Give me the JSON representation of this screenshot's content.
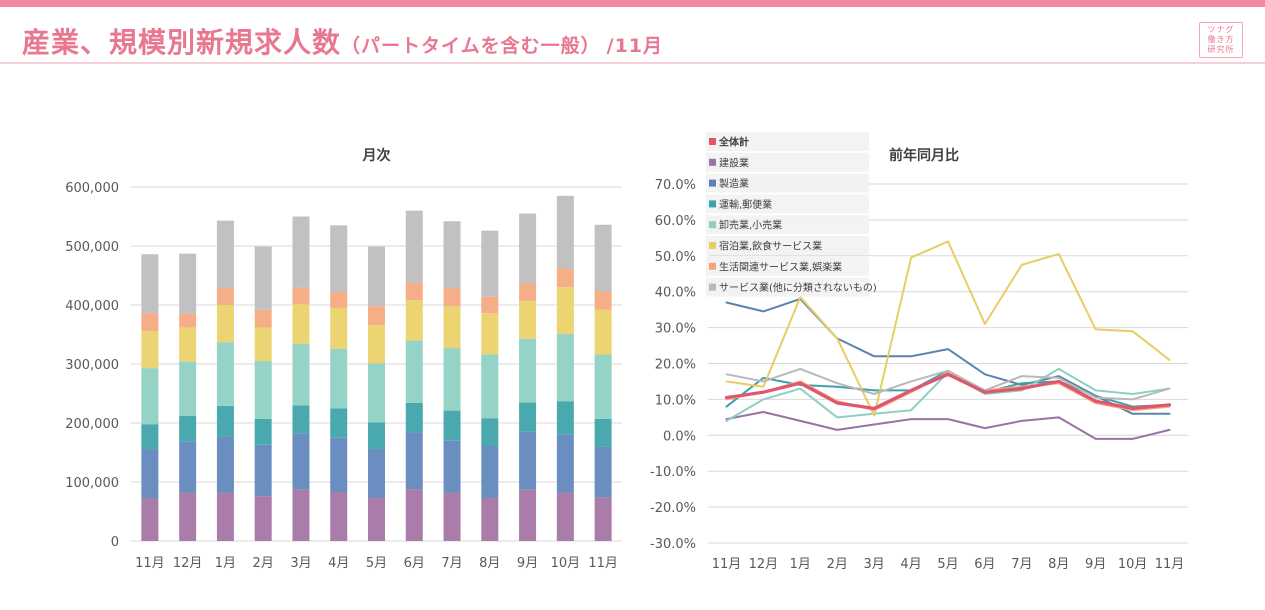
{
  "header": {
    "title_main": "産業、規模別新規求人数",
    "title_sub": "（パートタイムを含む一般）",
    "title_month": "/11月",
    "logo_lines": [
      "ツナグ",
      "働き方",
      "研究所"
    ]
  },
  "colors": {
    "accent": "#f08aa0",
    "title": "#e87790",
    "rule": "#f6d0d8",
    "axis_text": "#595959",
    "grid": "#d9d9d9"
  },
  "legend_items": [
    {
      "label": "全体計",
      "color": "#e0566f",
      "bold": true
    },
    {
      "label": "建設業",
      "color": "#9b71a8"
    },
    {
      "label": "製造業",
      "color": "#5b83ad"
    },
    {
      "label": "運輸,郵便業",
      "color": "#3ca1a8"
    },
    {
      "label": "卸売業,小売業",
      "color": "#8dd0c3"
    },
    {
      "label": "宿泊業,飲食サービス業",
      "color": "#e8cd63"
    },
    {
      "label": "生活関連サービス業,娯楽業",
      "color": "#f2a57a"
    },
    {
      "label": "サービス業(他に分類されないもの)",
      "color": "#b9b9b9"
    }
  ],
  "chart_data": [
    {
      "type": "bar",
      "stacked": true,
      "title": "月次",
      "categories": [
        "11月",
        "12月",
        "1月",
        "2月",
        "3月",
        "4月",
        "5月",
        "6月",
        "7月",
        "8月",
        "9月",
        "10月",
        "11月"
      ],
      "ylim": [
        0,
        600000
      ],
      "ytick_labels": [
        "0",
        "100,000",
        "200,000",
        "300,000",
        "400,000",
        "500,000",
        "600,000"
      ],
      "series": [
        {
          "name": "seg1",
          "color": "#a97ca9",
          "values": [
            72000,
            82000,
            82000,
            76000,
            87000,
            83000,
            73000,
            88000,
            82000,
            73000,
            87000,
            82000,
            74000
          ]
        },
        {
          "name": "seg2",
          "color": "#6a8ec0",
          "values": [
            83000,
            87000,
            95000,
            87000,
            95000,
            92000,
            83000,
            96000,
            88000,
            88000,
            98000,
            98000,
            86000
          ]
        },
        {
          "name": "seg3",
          "color": "#4aa9ae",
          "values": [
            43000,
            43000,
            52000,
            44000,
            48000,
            50000,
            45000,
            50000,
            51000,
            47000,
            50000,
            57000,
            47000
          ]
        },
        {
          "name": "seg4",
          "color": "#94d3c6",
          "values": [
            95000,
            92000,
            108000,
            98000,
            104000,
            101000,
            100000,
            106000,
            106000,
            108000,
            108000,
            114000,
            109000
          ]
        },
        {
          "name": "seg5",
          "color": "#ecd472",
          "values": [
            63000,
            58000,
            63000,
            57000,
            67000,
            69000,
            65000,
            68000,
            71000,
            70000,
            64000,
            79000,
            76000
          ]
        },
        {
          "name": "seg6",
          "color": "#f5ae88",
          "values": [
            30000,
            23000,
            28000,
            30000,
            28000,
            27000,
            32000,
            30000,
            30000,
            28000,
            30000,
            32000,
            31000
          ]
        },
        {
          "name": "seg7",
          "color": "#c1c1c1",
          "values": [
            100000,
            102000,
            115000,
            107000,
            121000,
            113000,
            101000,
            122000,
            114000,
            112000,
            118000,
            123000,
            113000
          ]
        }
      ]
    },
    {
      "type": "line",
      "title": "前年同月比",
      "categories": [
        "11月",
        "12月",
        "1月",
        "2月",
        "3月",
        "4月",
        "5月",
        "6月",
        "7月",
        "8月",
        "9月",
        "10月",
        "11月"
      ],
      "ylim": [
        -30,
        70
      ],
      "ytick_labels": [
        "-30.0%",
        "-20.0%",
        "-10.0%",
        "0.0%",
        "10.0%",
        "20.0%",
        "30.0%",
        "40.0%",
        "50.0%",
        "60.0%",
        "70.0%"
      ],
      "series": [
        {
          "name": "全体計",
          "color": "#e0566f",
          "width": 3.2,
          "values": [
            10.5,
            12.0,
            14.5,
            9.0,
            7.5,
            12.5,
            17.0,
            12.0,
            13.0,
            15.0,
            9.5,
            7.5,
            8.5
          ]
        },
        {
          "name": "建設業",
          "color": "#9b71a8",
          "width": 2,
          "values": [
            4.5,
            6.5,
            4.0,
            1.5,
            3.0,
            4.5,
            4.5,
            2.0,
            4.0,
            5.0,
            -1.0,
            -1.0,
            1.5
          ]
        },
        {
          "name": "製造業",
          "color": "#5b83ad",
          "width": 2,
          "values": [
            37.0,
            34.5,
            38.0,
            27.0,
            22.0,
            22.0,
            24.0,
            17.0,
            14.0,
            16.5,
            11.0,
            6.0,
            6.0
          ]
        },
        {
          "name": "運輸,郵便業",
          "color": "#3ca1a8",
          "width": 2,
          "values": [
            8.0,
            16.0,
            14.0,
            13.5,
            12.5,
            12.5,
            18.0,
            12.0,
            14.5,
            15.0,
            11.0,
            8.0,
            8.5
          ]
        },
        {
          "name": "卸売業,小売業",
          "color": "#8dd0c3",
          "width": 2,
          "values": [
            4.0,
            10.0,
            13.0,
            5.0,
            6.0,
            7.0,
            17.5,
            11.5,
            12.5,
            18.5,
            12.5,
            11.5,
            13.0
          ]
        },
        {
          "name": "宿泊業,飲食サービス業",
          "color": "#e8cd63",
          "width": 2,
          "values": [
            15.0,
            13.5,
            38.5,
            27.0,
            5.5,
            49.5,
            54.0,
            31.0,
            47.5,
            50.5,
            29.5,
            29.0,
            21.0
          ]
        },
        {
          "name": "生活関連サービス業,娯楽業",
          "color": "#f2a57a",
          "width": 2,
          "values": [
            10.0,
            12.0,
            15.0,
            9.5,
            7.0,
            12.0,
            17.5,
            12.5,
            13.5,
            14.5,
            9.0,
            7.0,
            8.0
          ]
        },
        {
          "name": "サービス業(他に分類されないもの)",
          "color": "#b9b9b9",
          "width": 2,
          "values": [
            17.0,
            15.0,
            18.5,
            14.5,
            11.5,
            15.0,
            18.0,
            12.5,
            16.5,
            16.0,
            10.5,
            10.0,
            13.0
          ]
        }
      ]
    }
  ]
}
